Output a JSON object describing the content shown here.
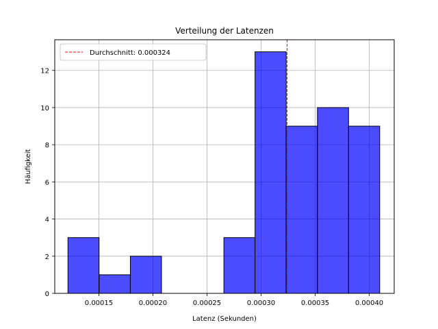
{
  "chart_data": {
    "type": "bar",
    "title": "Verteilung der Latenzen",
    "xlabel": "Latenz (Sekunden)",
    "ylabel": "Häufigkeit",
    "xlim": [
      0.0001092,
      0.0004231
    ],
    "ylim": [
      0,
      13.65
    ],
    "grid": true,
    "bar_color": "#0000ff",
    "bar_alpha": 0.7,
    "edge_color": "#000000",
    "bins": [
      {
        "start": 0.0001214,
        "end": 0.0001502,
        "value": 3
      },
      {
        "start": 0.0001502,
        "end": 0.0001791,
        "value": 1
      },
      {
        "start": 0.0001791,
        "end": 0.0002079,
        "value": 2
      },
      {
        "start": 0.0002079,
        "end": 0.0002367,
        "value": 0
      },
      {
        "start": 0.0002367,
        "end": 0.0002656,
        "value": 0
      },
      {
        "start": 0.0002656,
        "end": 0.0002944,
        "value": 3
      },
      {
        "start": 0.0002944,
        "end": 0.0003232,
        "value": 13
      },
      {
        "start": 0.0003232,
        "end": 0.0003521,
        "value": 9
      },
      {
        "start": 0.0003521,
        "end": 0.0003809,
        "value": 10
      },
      {
        "start": 0.0003809,
        "end": 0.0004097,
        "value": 9
      }
    ],
    "x_ticks": [
      {
        "value": 0.00015,
        "label": "0.00015"
      },
      {
        "value": 0.0002,
        "label": "0.00020"
      },
      {
        "value": 0.00025,
        "label": "0.00025"
      },
      {
        "value": 0.0003,
        "label": "0.00030"
      },
      {
        "value": 0.00035,
        "label": "0.00035"
      },
      {
        "value": 0.0004,
        "label": "0.00040"
      }
    ],
    "y_ticks": [
      {
        "value": 0,
        "label": "0"
      },
      {
        "value": 2,
        "label": "2"
      },
      {
        "value": 4,
        "label": "4"
      },
      {
        "value": 6,
        "label": "6"
      },
      {
        "value": 8,
        "label": "8"
      },
      {
        "value": 10,
        "label": "10"
      },
      {
        "value": 12,
        "label": "12"
      }
    ],
    "mean_line": {
      "value": 0.000324,
      "color": "#ff0000",
      "style": "dashed",
      "label": "Durchschnitt: 0.000324"
    },
    "legend": {
      "placement": "top-left"
    }
  }
}
